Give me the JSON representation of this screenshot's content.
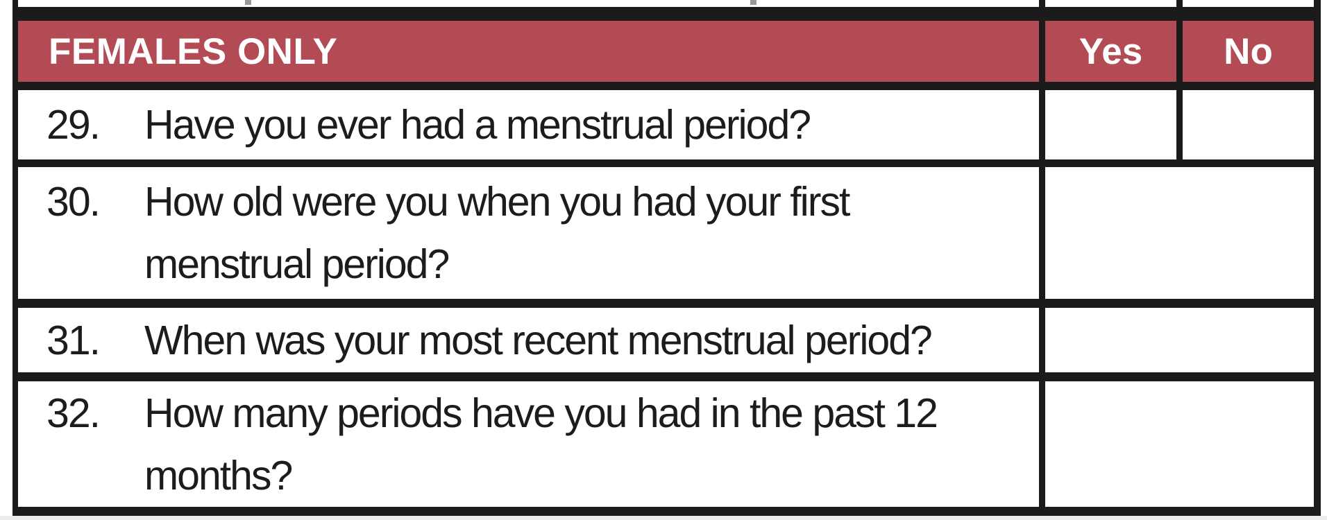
{
  "header": {
    "section_label": "FEMALES ONLY",
    "yes_label": "Yes",
    "no_label": "No"
  },
  "questions": [
    {
      "number": "29.",
      "text": "Have you ever had a menstrual period?",
      "answer_cells": "separate yes/no"
    },
    {
      "number": "30.",
      "text": "How old were you when you had your first menstrual period?",
      "answer_cells": "merged"
    },
    {
      "number": "31.",
      "text": "When was your most recent menstrual period?",
      "answer_cells": "merged"
    },
    {
      "number": "32.",
      "text": "How many periods have you had in the past 12 months?",
      "answer_cells": "merged"
    }
  ],
  "colors": {
    "header_bg": "#b34b54",
    "header_text": "#ffffff",
    "border": "#1b1b1b",
    "question_text": "#1c1c1c",
    "page_bottom": "#ececec",
    "remnant": "#9a9a9a"
  }
}
